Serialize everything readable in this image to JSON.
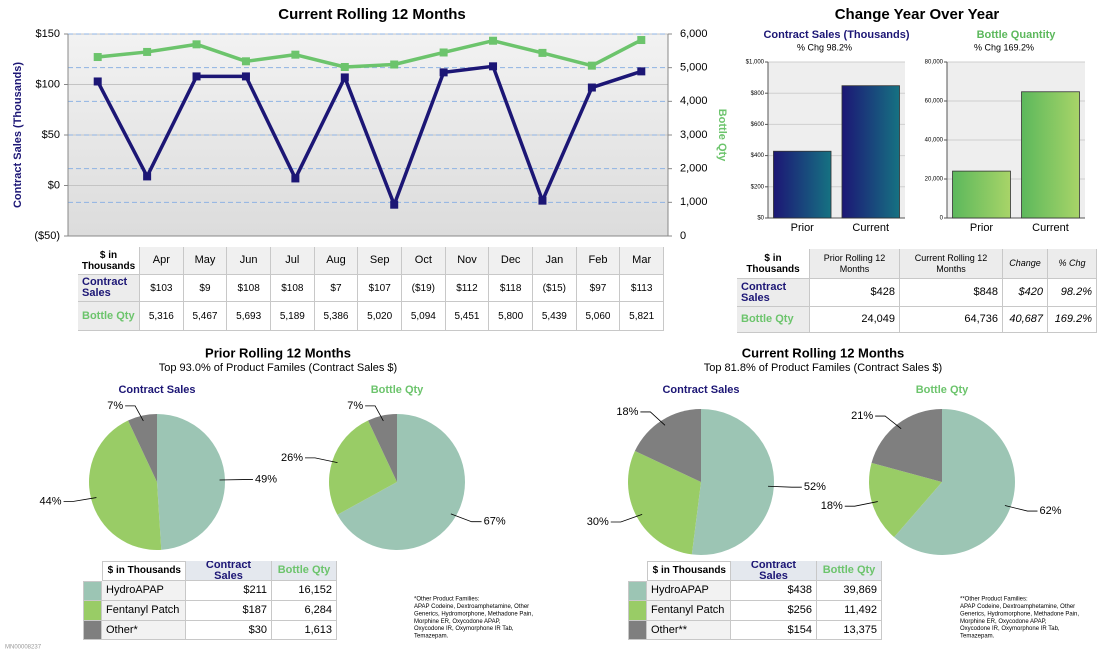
{
  "chart_data": [
    {
      "type": "line",
      "title": "Current Rolling 12 Months",
      "categories": [
        "Apr",
        "May",
        "Jun",
        "Jul",
        "Aug",
        "Sep",
        "Oct",
        "Nov",
        "Dec",
        "Jan",
        "Feb",
        "Mar"
      ],
      "y_label": "Contract Sales (Thousands)",
      "y2_label": "Bottle Qty",
      "table_header": "$ in Thousands",
      "series": [
        {
          "name": "Contract Sales",
          "color": "#1c1675",
          "values": [
            103,
            9,
            108,
            108,
            7,
            107,
            -19,
            112,
            118,
            -15,
            97,
            113
          ],
          "value_labels": [
            "$103",
            "$9",
            "$108",
            "$108",
            "$7",
            "$107",
            "($19)",
            "$112",
            "$118",
            "($15)",
            "$97",
            "$113"
          ]
        },
        {
          "name": "Bottle Qty",
          "color": "#6cc46c",
          "axis": "y2",
          "values": [
            5316,
            5467,
            5693,
            5189,
            5386,
            5020,
            5094,
            5451,
            5800,
            5439,
            5060,
            5821
          ],
          "value_labels": [
            "5,316",
            "5,467",
            "5,693",
            "5,189",
            "5,386",
            "5,020",
            "5,094",
            "5,451",
            "5,800",
            "5,439",
            "5,060",
            "5,821"
          ]
        }
      ],
      "ylim": [
        -50,
        150
      ],
      "yticks": [
        {
          "value": -50,
          "label": "($50)"
        },
        {
          "value": 0,
          "label": "$0"
        },
        {
          "value": 50,
          "label": "$50"
        },
        {
          "value": 100,
          "label": "$100"
        },
        {
          "value": 150,
          "label": "$150"
        }
      ],
      "y2lim": [
        0,
        6000
      ],
      "y2ticks": [
        0,
        {
          "value": 1000,
          "label": "1,000"
        },
        {
          "value": 2000,
          "label": "2,000"
        },
        {
          "value": 3000,
          "label": "3,000"
        },
        {
          "value": 4000,
          "label": "4,000"
        },
        {
          "value": 5000,
          "label": "5,000"
        },
        {
          "value": 6000,
          "label": "6,000"
        }
      ],
      "grid": true
    },
    {
      "type": "bar",
      "title": "Contract Sales (Thousands)",
      "subtitle": "% Chg 98.2%",
      "categories": [
        "Prior",
        "Current"
      ],
      "values": [
        428,
        848
      ],
      "value_labels": [
        "$428",
        "$848"
      ],
      "gradient": [
        "#1c1675",
        "#167282"
      ],
      "ylim": [
        0,
        1000
      ],
      "yticks": [
        {
          "value": 0,
          "label": "$0"
        },
        {
          "value": 200,
          "label": "$200"
        },
        {
          "value": 400,
          "label": "$400"
        },
        {
          "value": 600,
          "label": "$600"
        },
        {
          "value": 800,
          "label": "$800"
        },
        {
          "value": 1000,
          "label": "$1,000"
        }
      ],
      "grid": true
    },
    {
      "type": "bar",
      "title": "Bottle Quantity",
      "subtitle": "% Chg 169.2%",
      "categories": [
        "Prior",
        "Current"
      ],
      "values": [
        24049,
        64736
      ],
      "value_labels": [
        "24,049",
        "64,736"
      ],
      "gradient": [
        "#5cb85c",
        "#a8d468"
      ],
      "ylim": [
        0,
        80000
      ],
      "yticks": [
        0,
        {
          "value": 20000,
          "label": "20,000"
        },
        {
          "value": 40000,
          "label": "40,000"
        },
        {
          "value": 60000,
          "label": "60,000"
        },
        {
          "value": 80000,
          "label": "80,000"
        }
      ],
      "grid": true
    },
    {
      "type": "pie",
      "title": "Contract Sales",
      "title_color": "#1c1675",
      "values": [
        49,
        44,
        7
      ],
      "value_labels": [
        "49%",
        "44%",
        "7%"
      ],
      "colors": [
        "#9cc5b4",
        "#99cc66",
        "#7f7f7f"
      ]
    },
    {
      "type": "pie",
      "title": "Bottle Qty",
      "title_color": "#6cc46c",
      "values": [
        67,
        26,
        7
      ],
      "value_labels": [
        "67%",
        "26%",
        "7%"
      ],
      "colors": [
        "#9cc5b4",
        "#99cc66",
        "#7f7f7f"
      ]
    },
    {
      "type": "pie",
      "title": "Contract Sales",
      "title_color": "#1c1675",
      "values": [
        52,
        30,
        18
      ],
      "value_labels": [
        "52%",
        "30%",
        "18%"
      ],
      "colors": [
        "#9cc5b4",
        "#99cc66",
        "#7f7f7f"
      ]
    },
    {
      "type": "pie",
      "title": "Bottle Qty",
      "title_color": "#6cc46c",
      "values": [
        62,
        18,
        21
      ],
      "value_labels": [
        "62%",
        "18%",
        "21%"
      ],
      "colors": [
        "#9cc5b4",
        "#99cc66",
        "#7f7f7f"
      ]
    }
  ],
  "yoy": {
    "title": "Change Year Over Year",
    "table": {
      "header": [
        "$ in Thousands",
        "Prior Rolling 12 Months",
        "Current Rolling 12 Months",
        "Change",
        "% Chg"
      ],
      "rows": [
        {
          "label": "Contract Sales",
          "change": "$420",
          "pct": "98.2%"
        },
        {
          "label": "Bottle Qty",
          "change": "40,687",
          "pct": "169.2%"
        }
      ]
    }
  },
  "prior": {
    "title": "Prior Rolling 12 Months",
    "subtitle": "Top 93.0% of Product Familes (Contract Sales $)",
    "table": {
      "header": [
        "$ in Thousands",
        "Contract Sales",
        "Bottle Qty"
      ],
      "rows": [
        [
          "HydroAPAP",
          "$211",
          "16,152"
        ],
        [
          "Fentanyl Patch",
          "$187",
          "6,284"
        ],
        [
          "Other*",
          "$30",
          "1,613"
        ]
      ]
    },
    "footnote": [
      "*Other Product Families:",
      "APAP Codeine, Dextroamphetamine, Other",
      "Generics, Hydromorphone, Methadone Pain,",
      "Morphine ER, Oxycodone APAP,",
      "Oxycodone IR, Oxymorphone IR Tab,",
      "Temazepam."
    ]
  },
  "current": {
    "title": "Current Rolling 12 Months",
    "subtitle": "Top 81.8% of Product Familes (Contract Sales $)",
    "table": {
      "header": [
        "$ in Thousands",
        "Contract Sales",
        "Bottle Qty"
      ],
      "rows": [
        [
          "HydroAPAP",
          "$438",
          "39,869"
        ],
        [
          "Fentanyl Patch",
          "$256",
          "11,492"
        ],
        [
          "Other**",
          "$154",
          "13,375"
        ]
      ]
    },
    "footnote": [
      "**Other Product Families:",
      "APAP Codeine, Dextroamphetamine, Other",
      "Generics, Hydromorphone, Methadone Pain,",
      "Morphine ER, Oxycodone APAP,",
      "Oxycodone IR, Oxymorphone IR Tab,",
      "Temazepam."
    ]
  },
  "watermark": "MN00008237"
}
